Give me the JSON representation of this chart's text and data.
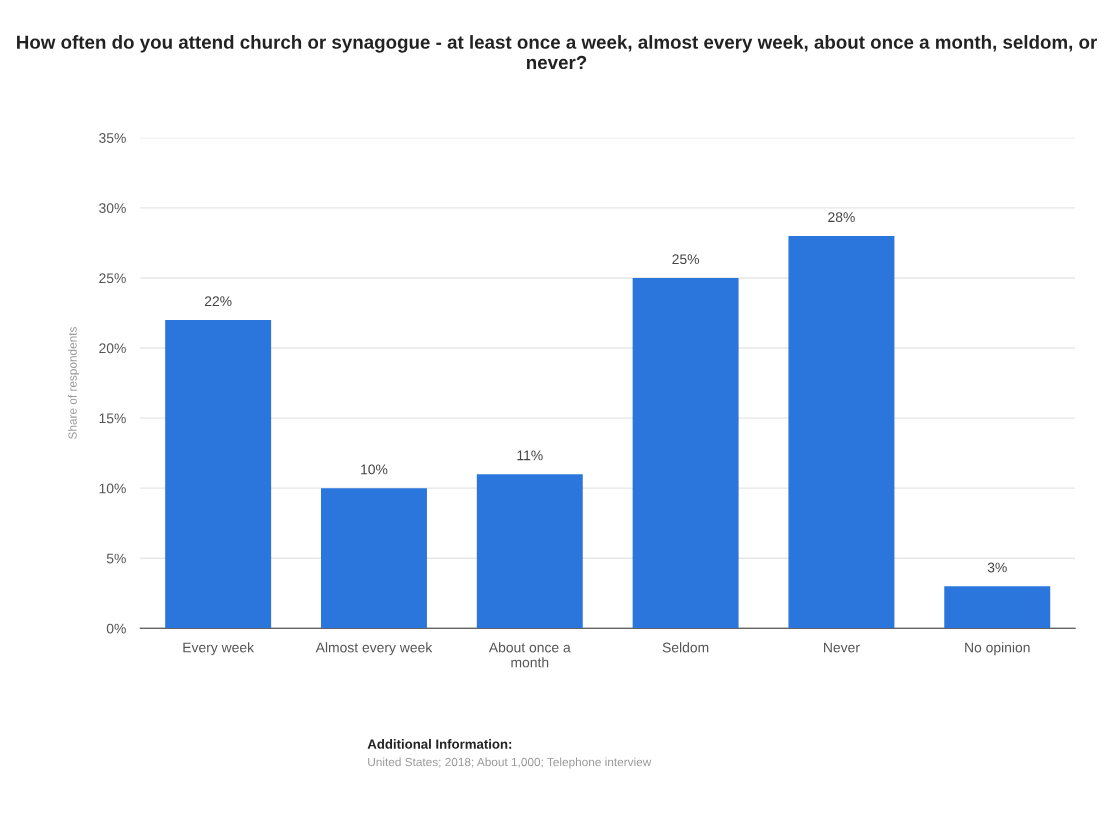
{
  "chart_data": {
    "type": "bar",
    "title": "How often do you attend church or synagogue - at least once a week, almost every week, about once a month, seldom, or never?",
    "ylabel": "Share of respondents",
    "categories": [
      "Every week",
      "Almost every week",
      "About once a\nmonth",
      "Seldom",
      "Never",
      "No opinion"
    ],
    "values": [
      22,
      10,
      11,
      25,
      28,
      3
    ],
    "value_labels": [
      "22%",
      "10%",
      "11%",
      "25%",
      "28%",
      "3%"
    ],
    "color": "#2a76dd",
    "ylim": [
      0,
      35
    ],
    "yticks": [
      {
        "value": 0,
        "label": "0%"
      },
      {
        "value": 5,
        "label": "5%"
      },
      {
        "value": 10,
        "label": "10%"
      },
      {
        "value": 15,
        "label": "15%"
      },
      {
        "value": 20,
        "label": "20%"
      },
      {
        "value": 25,
        "label": "25%"
      },
      {
        "value": 30,
        "label": "30%"
      },
      {
        "value": 35,
        "label": "35%"
      }
    ],
    "grid": "y",
    "annotations": [
      "Additional Information:",
      "United States; 2018; About 1,000; Telephone interview"
    ]
  }
}
